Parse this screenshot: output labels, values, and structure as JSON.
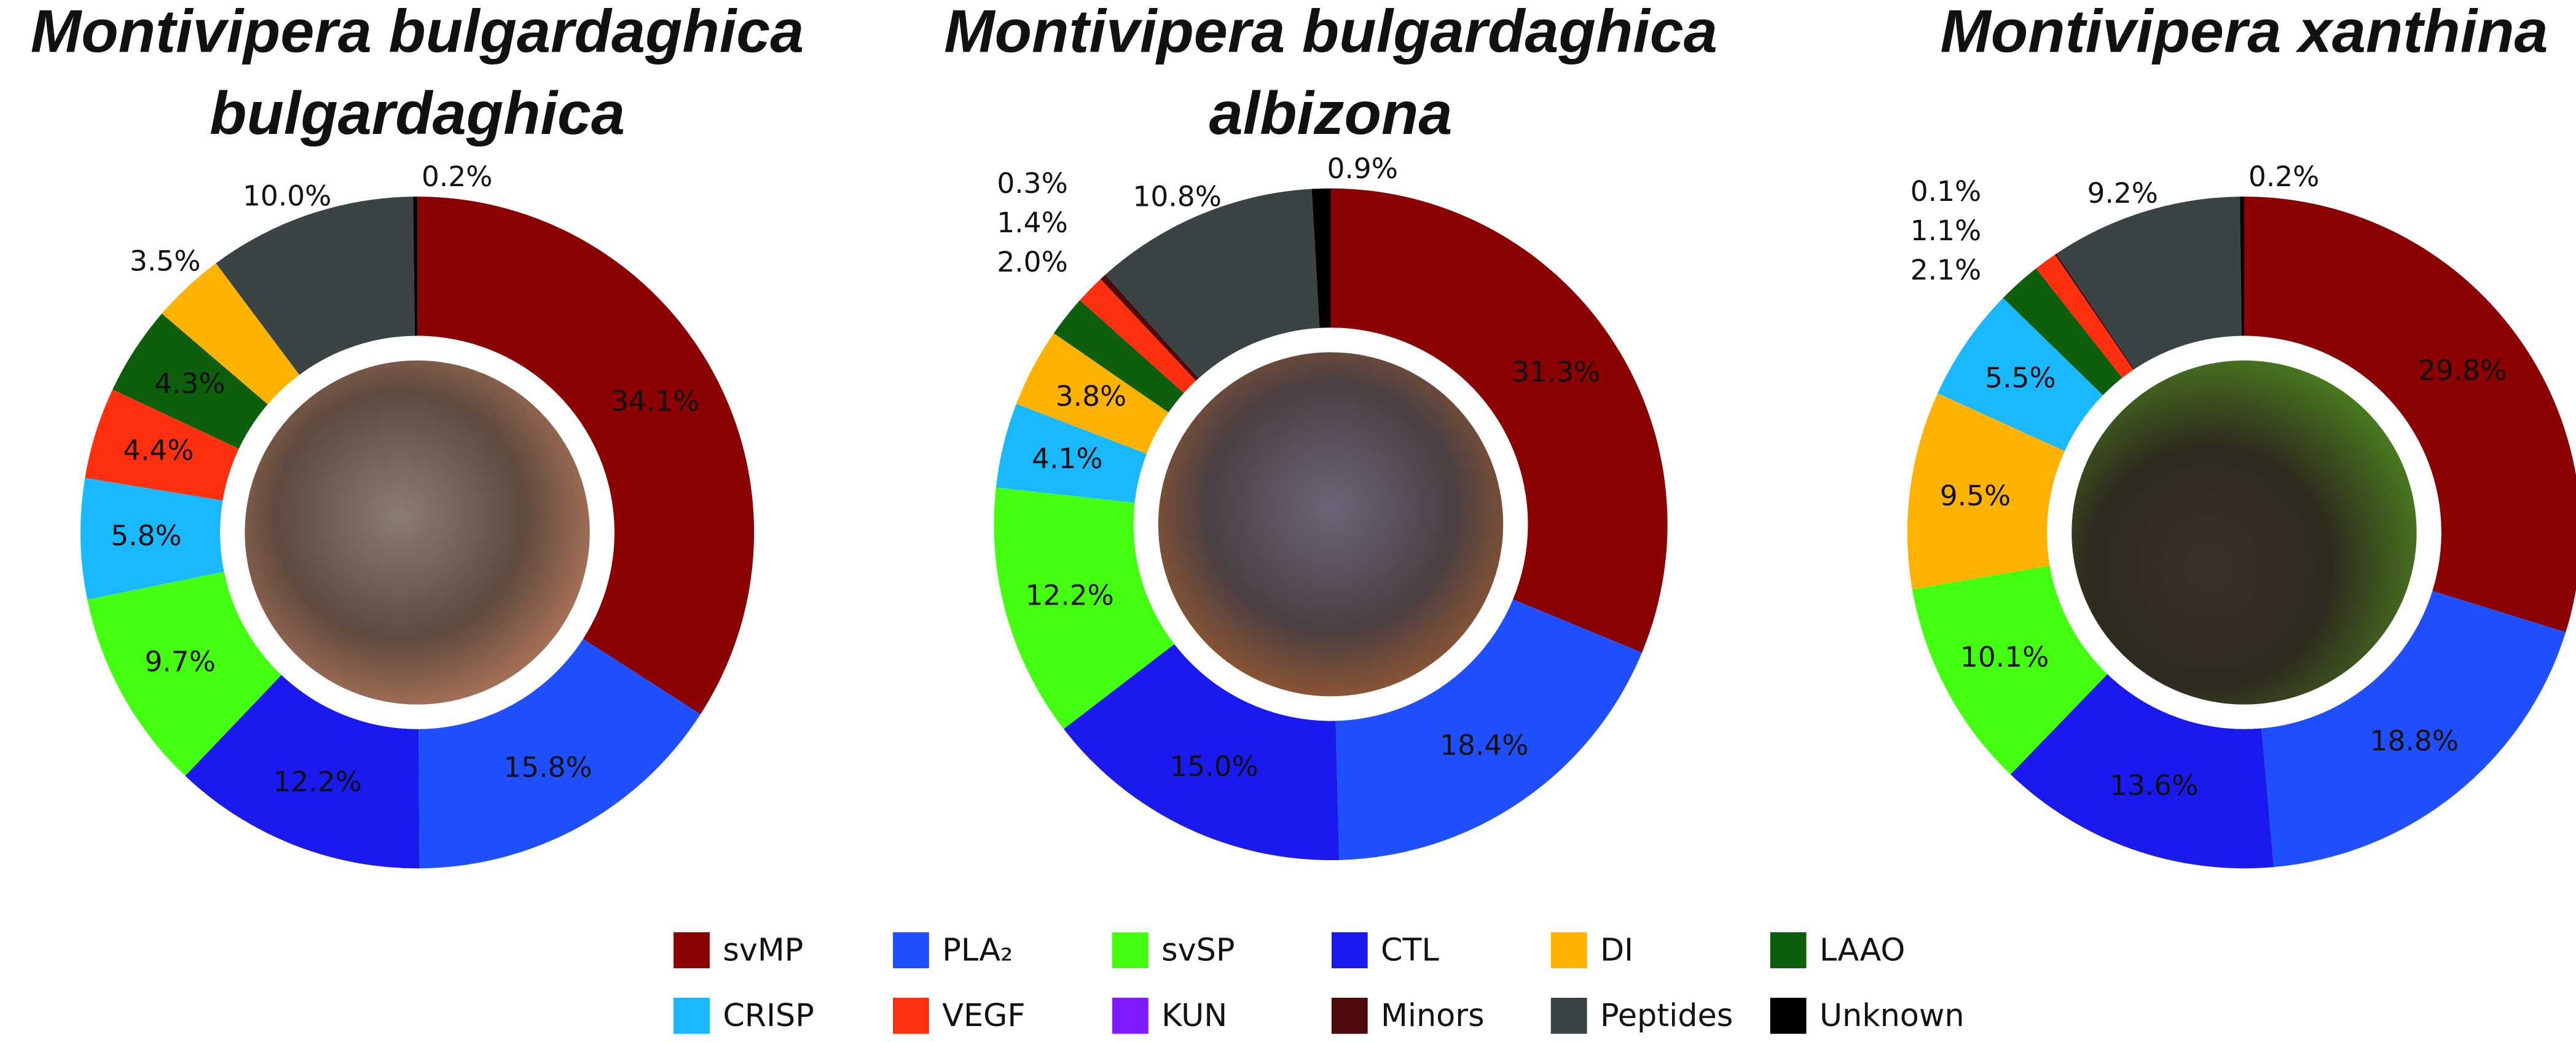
{
  "chart_data": [
    {
      "type": "pie",
      "title": [
        "Montivipera bulgardaghica",
        "bulgardaghica"
      ],
      "values": [
        34.1,
        15.8,
        12.2,
        9.7,
        5.8,
        4.4,
        4.3,
        3.5,
        10.0,
        0.2
      ],
      "value_labels": [
        "34.1%",
        "15.8%",
        "12.2%",
        "9.7%",
        "5.8%",
        "4.4%",
        "4.3%",
        "3.5%",
        "10.0%",
        "0.2%"
      ],
      "colors": [
        "#8b0000",
        "#1f4fff",
        "#1a1aee",
        "#44ff11",
        "#1ab8ff",
        "#ff3010",
        "#0d5e0d",
        "#ffb300",
        "#3a4444",
        "#000000"
      ]
    },
    {
      "type": "pie",
      "title": [
        "Montivipera bulgardaghica",
        "albizona"
      ],
      "values": [
        31.3,
        18.4,
        15.0,
        12.2,
        4.1,
        3.8,
        2.0,
        1.4,
        0.3,
        10.8,
        0.9
      ],
      "value_labels": [
        "31.3%",
        "18.4%",
        "15.0%",
        "12.2%",
        "4.1%",
        "3.8%",
        "2.0%",
        "1.4%",
        "0.3%",
        "10.8%",
        "0.9%"
      ],
      "colors": [
        "#8b0000",
        "#1f4fff",
        "#1a1aee",
        "#44ff11",
        "#1ab8ff",
        "#ffb300",
        "#0d5e0d",
        "#ff3010",
        "#4d0a0a",
        "#3a4444",
        "#000000"
      ]
    },
    {
      "type": "pie",
      "title": [
        "Montivipera xanthina"
      ],
      "values": [
        29.8,
        18.8,
        13.6,
        10.1,
        9.5,
        5.5,
        2.1,
        1.1,
        0.1,
        9.2,
        0.2
      ],
      "value_labels": [
        "29.8%",
        "18.8%",
        "13.6%",
        "10.1%",
        "9.5%",
        "5.5%",
        "2.1%",
        "1.1%",
        "0.1%",
        "9.2%",
        "0.2%"
      ],
      "colors": [
        "#8b0000",
        "#1f4fff",
        "#1a1aee",
        "#44ff11",
        "#ffb300",
        "#1ab8ff",
        "#0d5e0d",
        "#ff3010",
        "#4d0a0a",
        "#3a4444",
        "#000000"
      ]
    }
  ],
  "legend": {
    "items": [
      {
        "name": "svMP",
        "color": "#8b0000"
      },
      {
        "name": "PLA₂",
        "color": "#1f4fff"
      },
      {
        "name": "svSP",
        "color": "#44ff11"
      },
      {
        "name": "CTL",
        "color": "#1a1aee"
      },
      {
        "name": "DI",
        "color": "#ffb300"
      },
      {
        "name": "LAAO",
        "color": "#0d5e0d"
      },
      {
        "name": "CRISP",
        "color": "#1ab8ff"
      },
      {
        "name": "VEGF",
        "color": "#ff3010"
      },
      {
        "name": "KUN",
        "color": "#7f1aff"
      },
      {
        "name": "Minors",
        "color": "#4d0a0a"
      },
      {
        "name": "Peptides",
        "color": "#3a4444"
      },
      {
        "name": "Unknown",
        "color": "#000000"
      }
    ]
  }
}
